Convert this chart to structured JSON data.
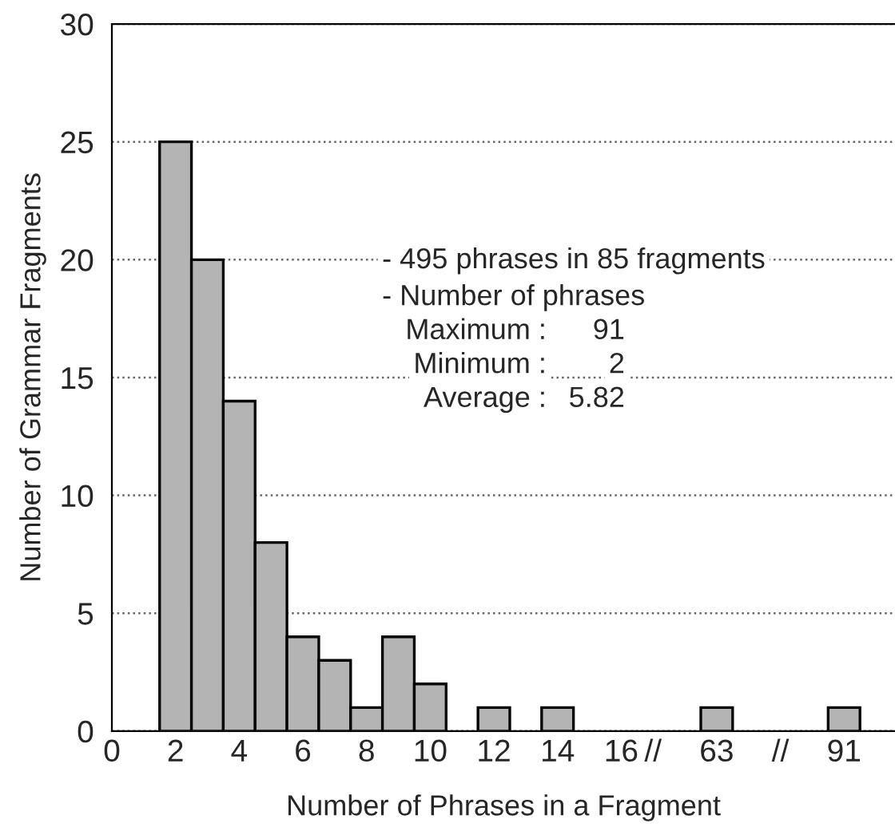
{
  "chart_data": {
    "type": "bar",
    "xlabel": "Number of Phrases in a Fragment",
    "ylabel": "Number of Grammar Fragments",
    "categories": [
      "0",
      null,
      "2",
      null,
      "4",
      null,
      "6",
      null,
      "8",
      null,
      "10",
      null,
      "12",
      null,
      "14",
      null,
      "16",
      "//",
      null,
      "63",
      null,
      "//",
      null,
      "91"
    ],
    "values": [
      null,
      null,
      25,
      20,
      14,
      8,
      4,
      3,
      1,
      4,
      2,
      null,
      1,
      null,
      1,
      null,
      null,
      null,
      null,
      1,
      null,
      null,
      null,
      1
    ],
    "color": "#b4b4b4",
    "ylim": [
      0,
      30
    ],
    "yticks": [
      0,
      5,
      10,
      15,
      20,
      25,
      30
    ],
    "grid": "y",
    "legend": false,
    "annotations": [
      "- 495 phrases in 85 fragments",
      "- Number of phrases",
      "Maximum :  91",
      "Minimum :  2",
      "Average :  5.82"
    ]
  }
}
